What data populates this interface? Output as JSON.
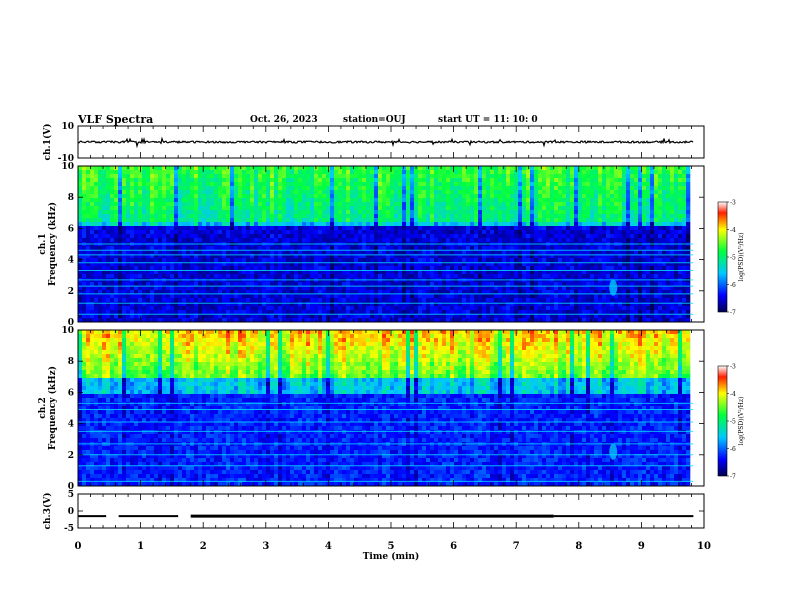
{
  "header": {
    "title": "VLF Spectra",
    "date": "Oct. 26, 2023",
    "station": "station=OUJ",
    "start": "start  UT =   11: 10: 0"
  },
  "chart_data": [
    {
      "type": "line",
      "name": "ch1-waveform",
      "ylabel": "ch.1(V)",
      "ylim": [
        -10,
        10
      ],
      "yticks": [
        "10",
        "-10"
      ],
      "xlim": [
        0,
        10
      ],
      "data_extent": [
        0,
        9.83
      ],
      "baseline": 0,
      "amplitude": 0.6
    },
    {
      "type": "heatmap",
      "name": "ch1-spectrogram",
      "ylabel": "ch.1\nFrequency  (kHz)",
      "ylim": [
        0,
        10
      ],
      "yticks": [
        "0",
        "2",
        "4",
        "6",
        "8",
        "10"
      ],
      "xlim": [
        0,
        10
      ],
      "data_extent": [
        0,
        9.83
      ],
      "colorbar": {
        "label": "log(PSD)(V²/Hz)",
        "range": [
          -7,
          -3
        ],
        "ticks": [
          "-3",
          "-4",
          "-5",
          "-6",
          "-7"
        ]
      },
      "description_bands": {
        "quiet_below_kHz": 6.2,
        "noise_above_kHz": 6.5,
        "lines_kHz": [
          0.5,
          1.2,
          1.8,
          2.3,
          2.7,
          3.3,
          3.8,
          4.3,
          4.6,
          5.0
        ],
        "whistler_at_min": 8.55
      }
    },
    {
      "type": "heatmap",
      "name": "ch2-spectrogram",
      "ylabel": "ch.2\nFrequency  (kHz)",
      "ylim": [
        0,
        10
      ],
      "yticks": [
        "0",
        "2",
        "4",
        "6",
        "8",
        "10"
      ],
      "xlim": [
        0,
        10
      ],
      "data_extent": [
        0,
        9.83
      ],
      "colorbar": {
        "label": "log(PSD)(V²/Hz)",
        "range": [
          -7,
          -3
        ],
        "ticks": [
          "-3",
          "-4",
          "-5",
          "-6",
          "-7"
        ]
      },
      "description_bands": {
        "quiet_below_kHz": 6.0,
        "noise_above_kHz": 7.0,
        "lines_kHz": [
          0.3,
          1.3,
          2.0,
          2.7,
          3.5,
          4.1,
          4.9,
          5.3
        ],
        "whistler_at_min": 8.55
      }
    },
    {
      "type": "line",
      "name": "ch3-signal",
      "ylabel": "ch.3(V)",
      "ylim": [
        -5,
        5
      ],
      "yticks": [
        "5",
        "0",
        "-5"
      ],
      "xlim": [
        0,
        10
      ],
      "level": -1.5,
      "segments": [
        [
          0,
          0.45
        ],
        [
          0.65,
          1.6
        ],
        [
          1.8,
          7.6
        ],
        [
          7.6,
          9.83
        ]
      ]
    }
  ],
  "xaxis": {
    "label": "Time  (min)",
    "ticks": [
      "0",
      "1",
      "2",
      "3",
      "4",
      "5",
      "6",
      "7",
      "8",
      "9",
      "10"
    ]
  }
}
